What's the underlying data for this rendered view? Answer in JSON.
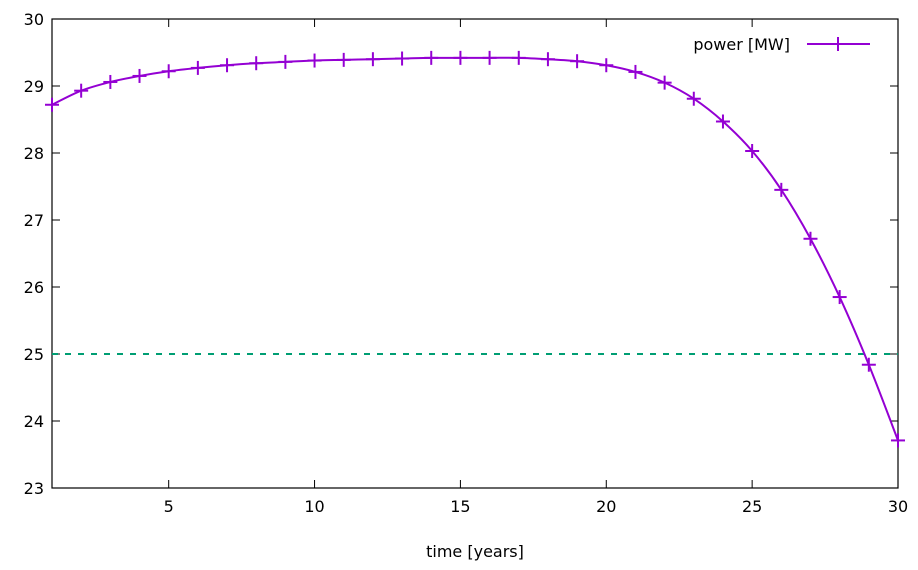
{
  "chart_data": {
    "type": "line",
    "title": "",
    "xlabel": "time [years]",
    "ylabel": "",
    "xlim": [
      1,
      30
    ],
    "ylim": [
      23,
      30
    ],
    "xticks": [
      5,
      10,
      15,
      20,
      25,
      30
    ],
    "yticks": [
      23,
      24,
      25,
      26,
      27,
      28,
      29,
      30
    ],
    "grid": false,
    "legend_position": "top-right",
    "series": [
      {
        "name": "power [MW]",
        "color": "#9400d3",
        "marker": "plus",
        "x": [
          1,
          2,
          3,
          4,
          5,
          6,
          7,
          8,
          9,
          10,
          11,
          12,
          13,
          14,
          15,
          16,
          17,
          18,
          19,
          20,
          21,
          22,
          23,
          24,
          25,
          26,
          27,
          28,
          29,
          30
        ],
        "y": [
          28.72,
          28.93,
          29.06,
          29.15,
          29.22,
          29.27,
          29.31,
          29.34,
          29.36,
          29.38,
          29.39,
          29.4,
          29.41,
          29.42,
          29.42,
          29.42,
          29.42,
          29.4,
          29.37,
          29.31,
          29.21,
          29.05,
          28.81,
          28.47,
          28.03,
          27.45,
          26.72,
          25.85,
          24.84,
          23.71
        ]
      }
    ],
    "reference_lines": [
      {
        "y": 25,
        "color": "#009e73",
        "style": "dashed"
      }
    ]
  }
}
